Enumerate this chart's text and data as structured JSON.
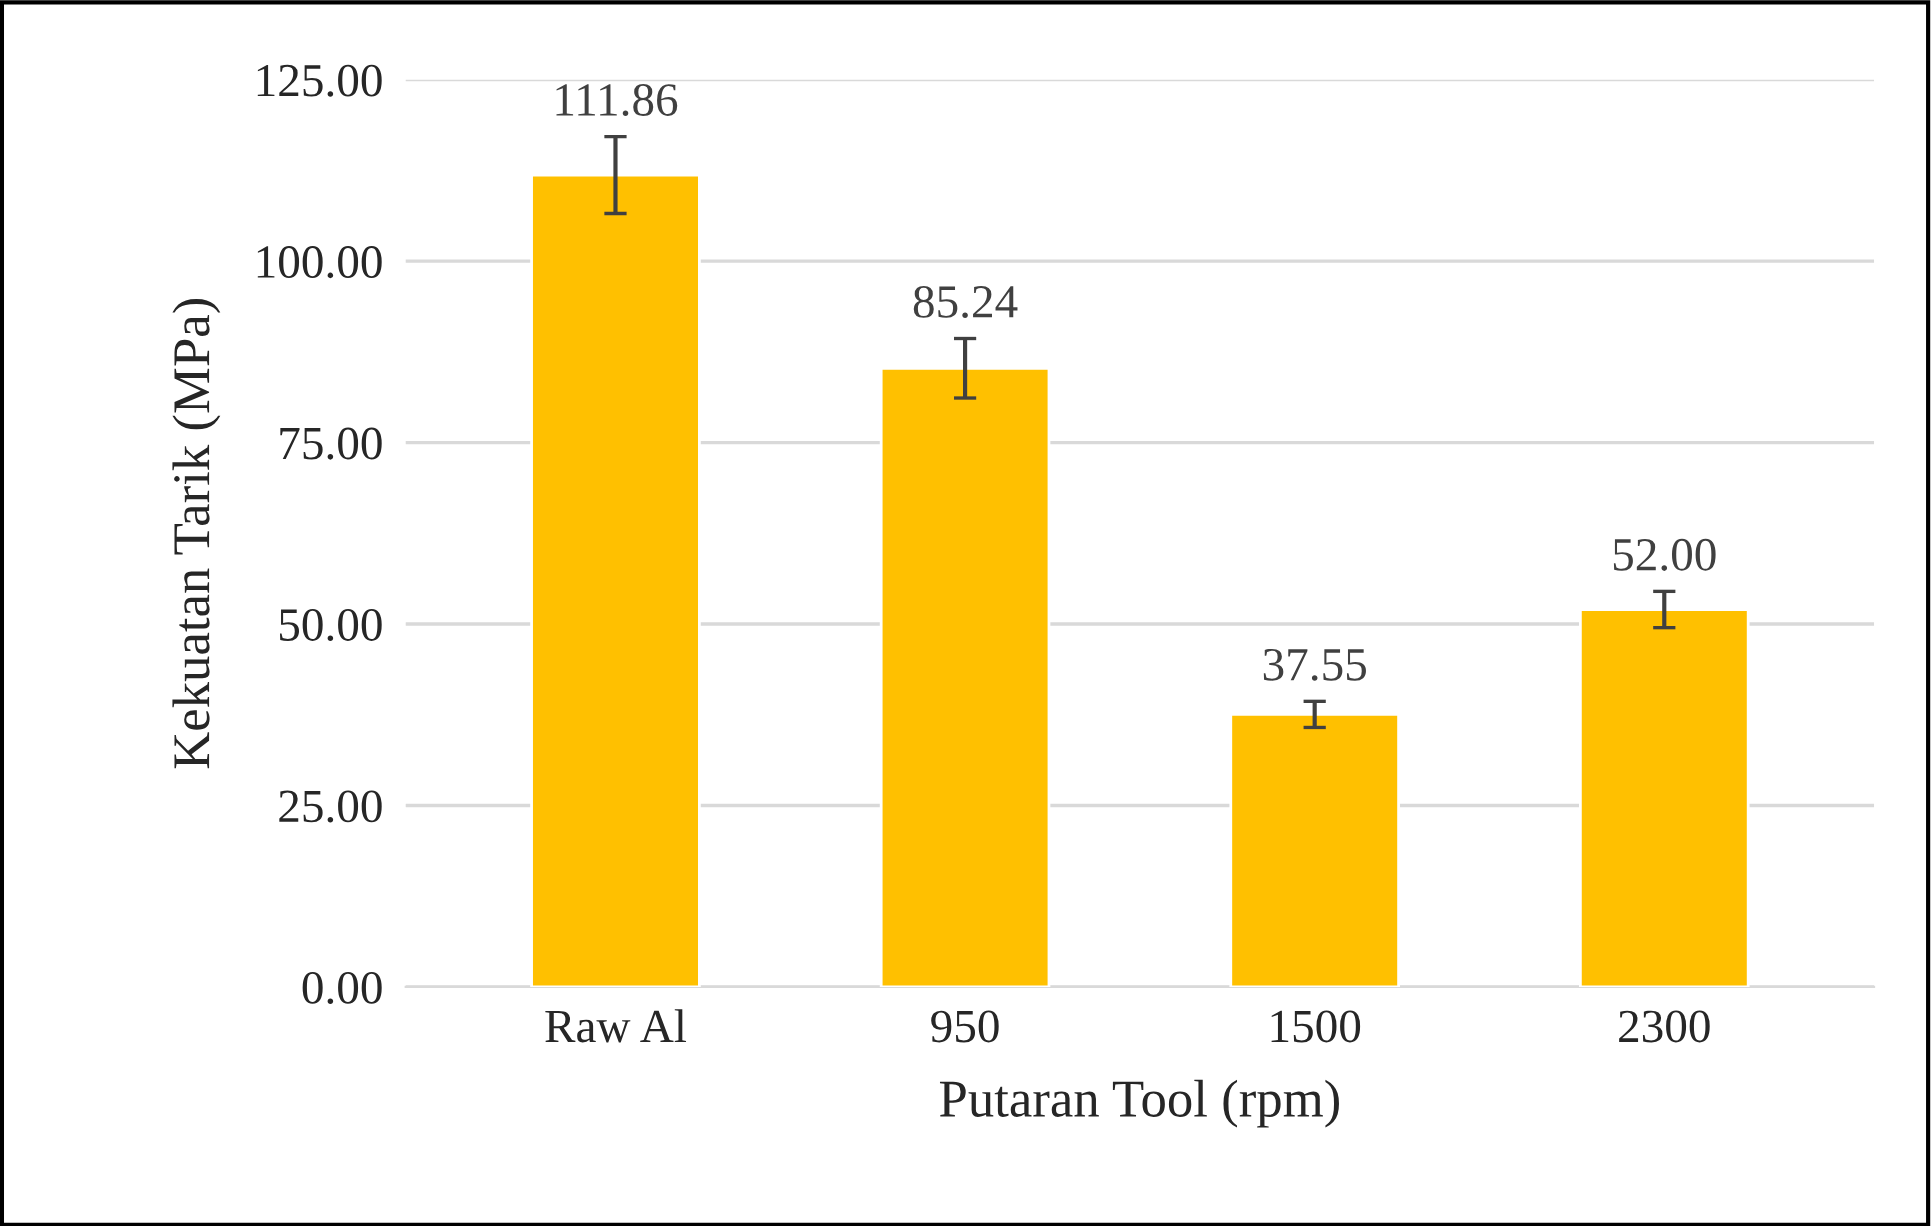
{
  "chart_data": {
    "type": "bar",
    "xlabel": "Putaran Tool (rpm)",
    "ylabel": "Kekuatan Tarik (MPa)",
    "categories": [
      "Raw Al",
      "950",
      "1500",
      "2300"
    ],
    "values": [
      111.86,
      85.24,
      37.55,
      52.0
    ],
    "value_labels": [
      "111.86",
      "85.24",
      "37.55",
      "52.00"
    ],
    "errors": [
      5.3,
      4.1,
      1.8,
      2.5
    ],
    "color": "#ffc000",
    "ylim": [
      0,
      125
    ],
    "yticks": [
      {
        "value": 0,
        "label": "0.00"
      },
      {
        "value": 25,
        "label": "25.00"
      },
      {
        "value": 50,
        "label": "50.00"
      },
      {
        "value": 75,
        "label": "75.00"
      },
      {
        "value": 100,
        "label": "100.00"
      },
      {
        "value": 125,
        "label": "125.00"
      }
    ],
    "grid": "y"
  }
}
